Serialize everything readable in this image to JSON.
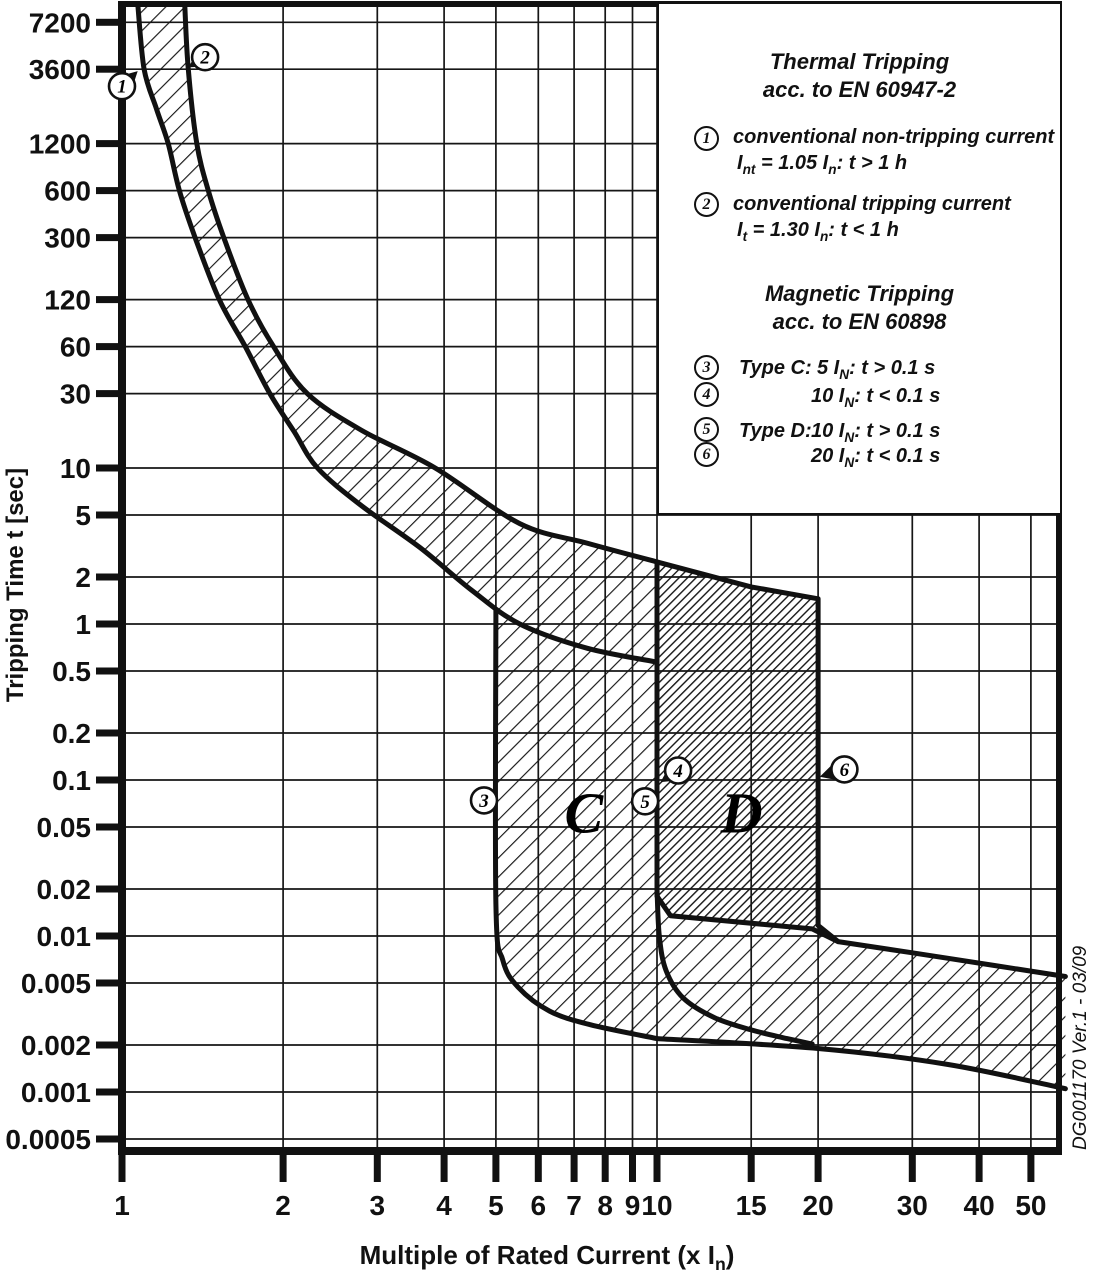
{
  "chart_data": {
    "type": "line",
    "x_axis": {
      "label": "Multiple of Rated Current (x I_{n})",
      "scale": "log",
      "ticks": [
        1,
        2,
        3,
        4,
        5,
        6,
        7,
        8,
        9,
        10,
        15,
        20,
        30,
        40,
        50
      ],
      "range": [
        1,
        58
      ]
    },
    "y_axis": {
      "label": "Tripping Time t [sec]",
      "scale": "log",
      "tick_labels": [
        "7200",
        "3600",
        "1200",
        "600",
        "300",
        "120",
        "60",
        "30",
        "10",
        "5",
        "2",
        "1",
        "0.5",
        "0.2",
        "0.1",
        "0.05",
        "0.02",
        "0.01",
        "0.005",
        "0.002",
        "0.001",
        "0.0005"
      ],
      "range": [
        0.0004,
        9500
      ]
    },
    "series": [
      {
        "name": "thermal-band-lower-limit",
        "points": [
          [
            1.07,
            9500
          ],
          [
            1.1,
            3600
          ],
          [
            1.16,
            2000
          ],
          [
            1.22,
            1200
          ],
          [
            1.28,
            600
          ],
          [
            1.37,
            300
          ],
          [
            1.52,
            120
          ],
          [
            1.7,
            60
          ],
          [
            1.89,
            30
          ],
          [
            2.1,
            17
          ],
          [
            2.32,
            10
          ],
          [
            2.79,
            5.8
          ],
          [
            3.6,
            3.1
          ],
          [
            4.5,
            1.65
          ],
          [
            5.54,
            1.0
          ],
          [
            7.4,
            0.7
          ],
          [
            10,
            0.57
          ]
        ]
      },
      {
        "name": "thermal-band-upper-limit",
        "points": [
          [
            1.31,
            9500
          ],
          [
            1.33,
            3600
          ],
          [
            1.38,
            1200
          ],
          [
            1.45,
            600
          ],
          [
            1.55,
            300
          ],
          [
            1.72,
            120
          ],
          [
            1.92,
            60
          ],
          [
            2.22,
            30
          ],
          [
            2.8,
            17.5
          ],
          [
            3.85,
            10
          ],
          [
            5.54,
            4.4
          ],
          [
            7.4,
            3.3
          ],
          [
            10,
            2.5
          ],
          [
            15,
            1.73
          ],
          [
            20,
            1.45
          ]
        ]
      }
    ],
    "regions": [
      {
        "name": "type-c-region",
        "hatch": "light",
        "polygon": [
          [
            5,
            1.23
          ],
          [
            5,
            0.016
          ],
          [
            5.15,
            0.007
          ],
          [
            5.5,
            0.0047
          ],
          [
            6.3,
            0.0033
          ],
          [
            7.5,
            0.0027
          ],
          [
            10,
            0.0022
          ],
          [
            10,
            0.57
          ],
          [
            7.4,
            0.7
          ],
          [
            5.54,
            1.0
          ]
        ]
      },
      {
        "name": "opening-time-band",
        "hatch": "light",
        "polygon": [
          [
            10,
            0.016
          ],
          [
            10,
            0.0022
          ],
          [
            20,
            0.0019
          ],
          [
            35,
            0.0015
          ],
          [
            58,
            0.00105
          ],
          [
            58,
            0.0055
          ],
          [
            35,
            0.0072
          ],
          [
            22,
            0.0092
          ],
          [
            19.5,
            0.0111
          ],
          [
            10.6,
            0.0135
          ]
        ]
      },
      {
        "name": "type-d-region",
        "hatch": "dark",
        "polygon": [
          [
            10,
            2.5
          ],
          [
            15,
            1.73
          ],
          [
            20,
            1.45
          ],
          [
            20,
            0.0117
          ],
          [
            21.8,
            0.0092
          ],
          [
            19.5,
            0.0111
          ],
          [
            10.6,
            0.0135
          ],
          [
            10,
            0.018
          ]
        ]
      }
    ],
    "outlines": [
      [
        [
          5,
          1.23
        ],
        [
          5,
          0.016
        ],
        [
          5.15,
          0.007
        ],
        [
          5.5,
          0.0047
        ],
        [
          6.3,
          0.0033
        ],
        [
          7.5,
          0.0027
        ],
        [
          10,
          0.0022
        ]
      ],
      [
        [
          10,
          0.0022
        ],
        [
          20,
          0.0019
        ],
        [
          35,
          0.0015
        ],
        [
          58,
          0.00105
        ]
      ],
      [
        [
          21.8,
          0.0092
        ],
        [
          35,
          0.0072
        ],
        [
          58,
          0.0055
        ]
      ],
      [
        [
          10,
          0.02
        ],
        [
          10.1,
          0.01
        ],
        [
          10.4,
          0.006
        ],
        [
          11.2,
          0.004
        ],
        [
          12.8,
          0.003
        ],
        [
          15,
          0.0025
        ],
        [
          17.5,
          0.0022
        ],
        [
          19.5,
          0.00203
        ]
      ]
    ],
    "markers": [
      {
        "n": "1",
        "at": [
          1.0,
          2800
        ],
        "tip": [
          1.07,
          3500
        ]
      },
      {
        "n": "2",
        "at": [
          1.43,
          4300
        ],
        "tip": [
          1.33,
          3700
        ]
      },
      {
        "n": "3",
        "at": [
          4.75,
          0.074
        ],
        "tip": [
          5.03,
          0.082
        ]
      },
      {
        "n": "4",
        "at": [
          10.95,
          0.115
        ],
        "tip": [
          10.15,
          0.097
        ]
      },
      {
        "n": "5",
        "at": [
          9.5,
          0.073
        ],
        "tip": [
          9.97,
          0.081
        ]
      },
      {
        "n": "6",
        "at": [
          22.4,
          0.117
        ],
        "tip": [
          20.15,
          0.105
        ]
      }
    ],
    "region_labels": [
      {
        "text": "C",
        "at": [
          7.3,
          0.062
        ]
      },
      {
        "text": "D",
        "at": [
          14.4,
          0.062
        ]
      }
    ],
    "doc_id": "DG001170 Ver.1 - 03/09"
  },
  "legend": {
    "thermal": {
      "title": "Thermal Tripping",
      "subtitle": "acc. to EN 60947-2",
      "items": [
        {
          "n": "1",
          "line1": "conventional non-tripping current",
          "line2": "I_{nt} = 1.05 I_{n}: t > 1 h"
        },
        {
          "n": "2",
          "line1": "conventional tripping current",
          "line2": "I_{t} = 1.30 I_{n}: t < 1 h"
        }
      ]
    },
    "magnetic": {
      "title": "Magnetic Tripping",
      "subtitle": "acc. to EN 60898",
      "items": [
        {
          "n": "3",
          "type": "Type C:",
          "formula": "5 I_{N}: t > 0.1 s"
        },
        {
          "n": "4",
          "type": "",
          "formula": "10 I_{N}: t < 0.1 s"
        },
        {
          "n": "5",
          "type": "Type D:",
          "formula": "10 I_{N}: t > 0.1 s"
        },
        {
          "n": "6",
          "type": "",
          "formula": "20 I_{N}: t < 0.1 s"
        }
      ]
    }
  }
}
